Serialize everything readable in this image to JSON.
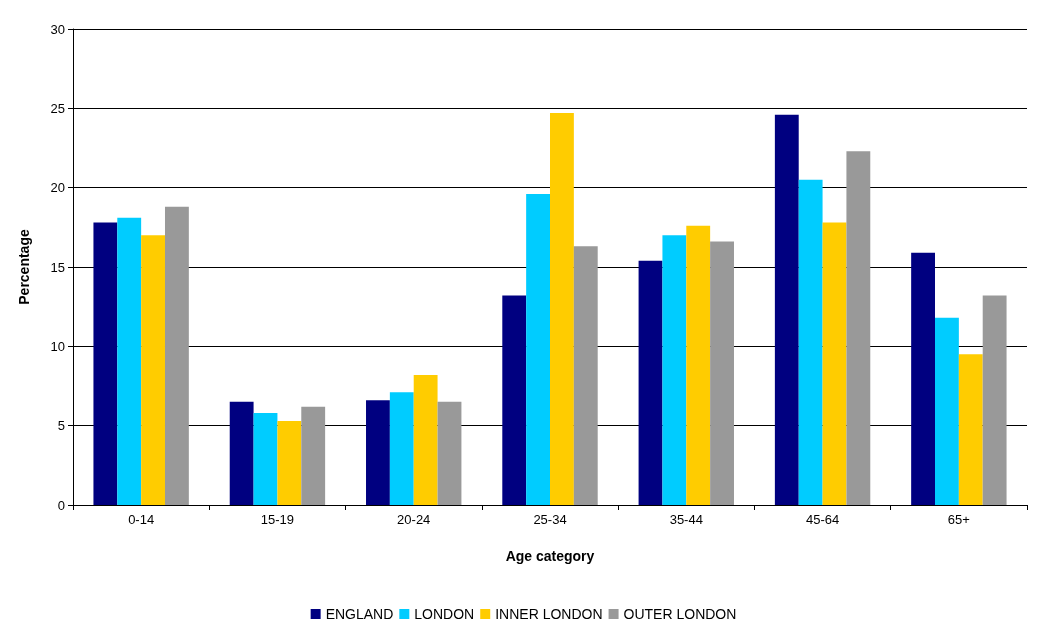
{
  "chart_data": {
    "type": "bar",
    "xlabel": "Age category",
    "ylabel": "Percentage",
    "categories": [
      "0-14",
      "15-19",
      "20-24",
      "25-34",
      "35-44",
      "45-64",
      "65+"
    ],
    "series": [
      {
        "name": "ENGLAND",
        "color": "#000080",
        "values": [
          17.8,
          6.5,
          6.6,
          13.2,
          15.4,
          24.6,
          15.9
        ]
      },
      {
        "name": "LONDON",
        "color": "#00ccff",
        "values": [
          18.1,
          5.8,
          7.1,
          19.6,
          17.0,
          20.5,
          11.8
        ]
      },
      {
        "name": "INNER LONDON",
        "color": "#ffcc00",
        "values": [
          17.0,
          5.3,
          8.2,
          24.7,
          17.6,
          17.8,
          9.5
        ]
      },
      {
        "name": "OUTER LONDON",
        "color": "#999999",
        "values": [
          18.8,
          6.2,
          6.5,
          16.3,
          16.6,
          22.3,
          13.2
        ]
      }
    ],
    "ylim": [
      0,
      30
    ],
    "yticks": [
      0,
      5,
      10,
      15,
      20,
      25,
      30
    ],
    "grid": "y",
    "legend": "bottom"
  }
}
